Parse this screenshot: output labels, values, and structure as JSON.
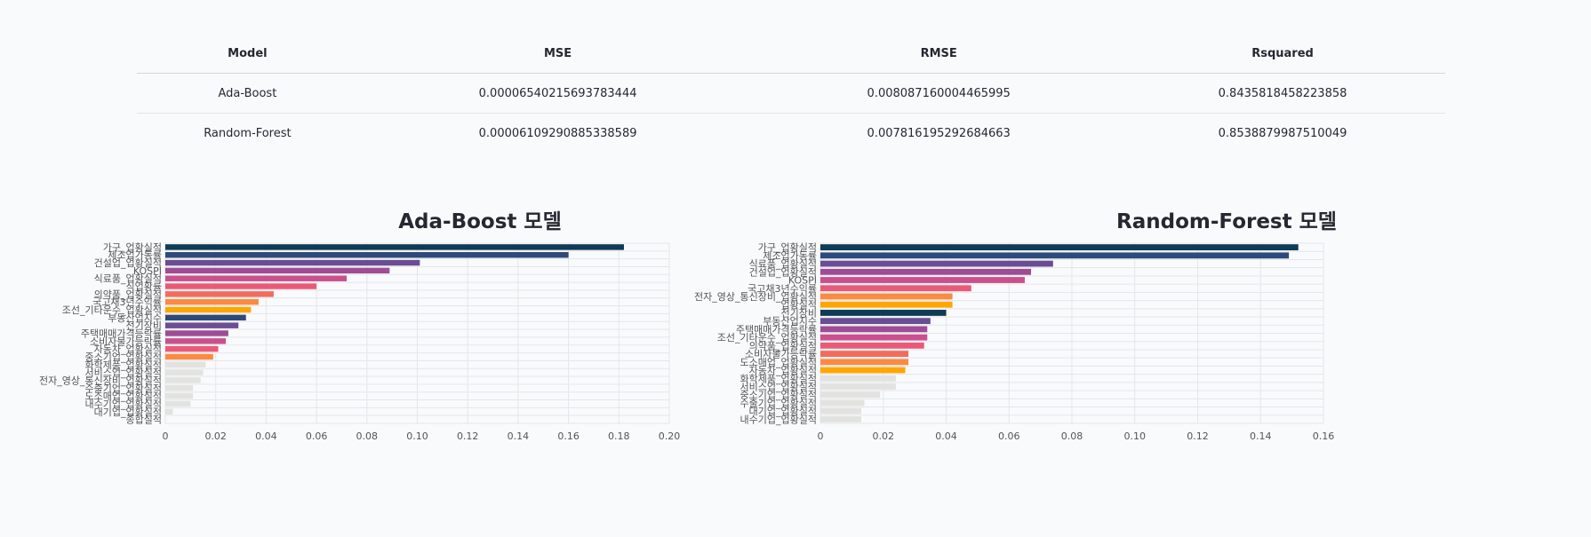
{
  "table": {
    "headers": [
      "Model",
      "MSE",
      "RMSE",
      "Rsquared"
    ],
    "rows": [
      [
        "Ada-Boost",
        "0.00006540215693783444",
        "0.008087160004465995",
        "0.8435818458223858"
      ],
      [
        "Random-Forest",
        "0.00006109290885338589",
        "0.007816195292684663",
        "0.8538879987510049"
      ]
    ]
  },
  "chart_data": [
    {
      "type": "bar",
      "orientation": "horizontal",
      "title": "Ada-Boost 모델",
      "xlim": [
        0,
        0.2
      ],
      "xticks": [
        "0",
        "0.02",
        "0.04",
        "0.06",
        "0.08",
        "0.10",
        "0.12",
        "0.14",
        "0.16",
        "0.18",
        "0.20"
      ],
      "grid": true,
      "categories": [
        "가구_업황실적",
        "제조업가동률",
        "건설업_업황실적",
        "KOSPI",
        "식료품_업황실적",
        "식업황률",
        "의약품_업황실적",
        "국고채3년수익률",
        "조선_기타운수_업황실적",
        "부동산업지수",
        "전기장비",
        "주택매매가격등락률",
        "소비자물가등락률",
        "자동차_업황실적",
        "중소기업_업황실적",
        "화학제품_업황실적",
        "서비스업_업황실적",
        "전자_영상_통신장비_업황실적",
        "수출기업_업황실적",
        "도소매업_업황실적",
        "내수기업_업황실적",
        "대기업_업황실적",
        "종합실적"
      ],
      "values": [
        0.182,
        0.16,
        0.101,
        0.089,
        0.072,
        0.06,
        0.043,
        0.037,
        0.034,
        0.032,
        0.029,
        0.025,
        0.024,
        0.021,
        0.019,
        0.016,
        0.015,
        0.014,
        0.011,
        0.011,
        0.01,
        0.003,
        0.0
      ],
      "colors": [
        "#0e3b55",
        "#2e4a7a",
        "#6a4d93",
        "#9e4d95",
        "#c9508d",
        "#ea5a78",
        "#f36b5c",
        "#fb8a42",
        "#ffa600",
        "#2e4a7a",
        "#6a4d93",
        "#9e4d95",
        "#c9508d",
        "#ea5a78",
        "#fb8a42",
        "#e2e2e0",
        "#e2e2e0",
        "#e2e2e0",
        "#e2e2e0",
        "#e2e2e0",
        "#e2e2e0",
        "#e2e2e0",
        "#e2e2e0"
      ]
    },
    {
      "type": "bar",
      "orientation": "horizontal",
      "title": "Random-Forest 모델",
      "xlim": [
        0,
        0.16
      ],
      "xticks": [
        "0",
        "0.02",
        "0.04",
        "0.06",
        "0.08",
        "0.10",
        "0.12",
        "0.14",
        "0.16"
      ],
      "grid": true,
      "categories": [
        "가구_업황실적",
        "제조업가동률",
        "식료품_업황실적",
        "건설업_업황실적",
        "KOSPI",
        "국고채3년수익률",
        "전자_영상_통신장비_업황실적",
        "업황실적",
        "전기장비",
        "부동산업지수",
        "주택매매가격등락률",
        "조선_기타운수_업황실적",
        "의약품_업황실적",
        "소비자물가등락률",
        "도소매업_업황실적",
        "자동차_업황실적",
        "화학제품_업황실적",
        "서비스업_업황실적",
        "중소기업_업황실적",
        "수출기업_업황실적",
        "대기업_업황실적",
        "내수기업_업황실적"
      ],
      "values": [
        0.152,
        0.149,
        0.074,
        0.067,
        0.065,
        0.048,
        0.042,
        0.042,
        0.04,
        0.035,
        0.034,
        0.034,
        0.033,
        0.028,
        0.028,
        0.027,
        0.024,
        0.024,
        0.019,
        0.014,
        0.013,
        0.013
      ],
      "colors": [
        "#0e3b55",
        "#2e4a7a",
        "#6a4d93",
        "#9e4d95",
        "#c9508d",
        "#ea5a78",
        "#fb8a42",
        "#ffa600",
        "#0e3b55",
        "#6a4d93",
        "#9e4d95",
        "#c9508d",
        "#ea5a78",
        "#f36b5c",
        "#fb8a42",
        "#ffa600",
        "#e2e2e0",
        "#e2e2e0",
        "#e2e2e0",
        "#e2e2e0",
        "#e2e2e0",
        "#e2e2e0"
      ]
    }
  ]
}
